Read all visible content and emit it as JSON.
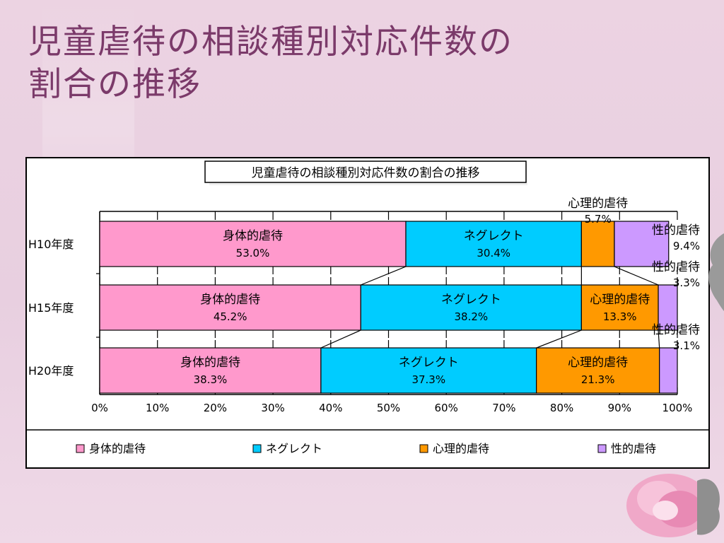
{
  "slide": {
    "title_line1": "児童虐待の相談種別対応件数の",
    "title_line2": "割合の推移"
  },
  "chart_data": {
    "type": "bar",
    "orientation": "horizontal-stacked-100",
    "title": "児童虐待の相談種別対応件数の割合の推移",
    "categories": [
      "H10年度",
      "H15年度",
      "H20年度"
    ],
    "series": [
      {
        "name": "身体的虐待",
        "color": "#ff99cc",
        "values": [
          53.0,
          45.2,
          38.3
        ],
        "labels": [
          "53.0%",
          "45.2%",
          "38.3%"
        ]
      },
      {
        "name": "ネグレクト",
        "color": "#00ccff",
        "values": [
          30.4,
          38.2,
          37.3
        ],
        "labels": [
          "30.4%",
          "38.2%",
          "37.3%"
        ]
      },
      {
        "name": "心理的虐待",
        "color": "#ff9900",
        "values": [
          5.7,
          13.3,
          21.3
        ],
        "labels": [
          "5.7%",
          "13.3%",
          "21.3%"
        ]
      },
      {
        "name": "性的虐待",
        "color": "#cc99ff",
        "values": [
          9.4,
          3.3,
          3.1
        ],
        "labels": [
          "9.4%",
          "3.3%",
          "3.1%"
        ]
      }
    ],
    "x_ticks": [
      "0%",
      "10%",
      "20%",
      "30%",
      "40%",
      "50%",
      "60%",
      "70%",
      "80%",
      "90%",
      "100%"
    ],
    "xlim": [
      0,
      100
    ],
    "series_lines": true,
    "grid": false,
    "legend_position": "bottom"
  }
}
